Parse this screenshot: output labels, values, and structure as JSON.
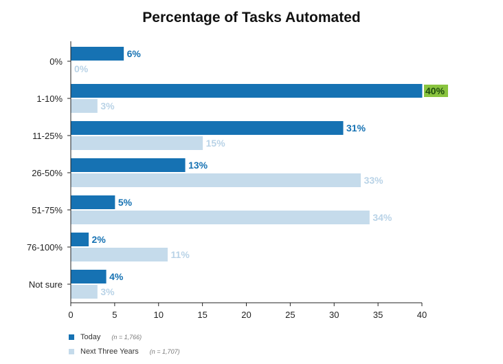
{
  "colors": {
    "today": "#1672b3",
    "next_three_years": "#c5dbeb",
    "today_label": "#1672b3",
    "next_label": "#b9d3e7",
    "highlight": "#8ac43f",
    "highlight_text": "#1e4d0e",
    "axis": "#222222",
    "tick_text": "#222222"
  },
  "chart_data": {
    "type": "bar",
    "orientation": "horizontal",
    "title": "Percentage of Tasks Automated",
    "xlabel": "",
    "ylabel": "",
    "xlim": [
      0,
      40
    ],
    "xticks": [
      0,
      5,
      10,
      15,
      20,
      25,
      30,
      35,
      40
    ],
    "categories": [
      "0%",
      "1-10%",
      "11-25%",
      "26-50%",
      "51-75%",
      "76-100%",
      "Not sure"
    ],
    "series": [
      {
        "name": "Today",
        "note": "(n = 1,766)",
        "values": [
          6,
          40,
          31,
          13,
          5,
          2,
          4
        ],
        "labels": [
          "6%",
          "40%",
          "31%",
          "13%",
          "5%",
          "2%",
          "4%"
        ]
      },
      {
        "name": "Next Three Years",
        "note": "(n = 1,707)",
        "values": [
          0,
          3,
          15,
          33,
          34,
          11,
          3
        ],
        "labels": [
          "0%",
          "3%",
          "15%",
          "33%",
          "34%",
          "11%",
          "3%"
        ]
      }
    ],
    "highlighted_label": {
      "series": 0,
      "index": 1
    },
    "grid": false,
    "legend_position": "bottom-left"
  }
}
